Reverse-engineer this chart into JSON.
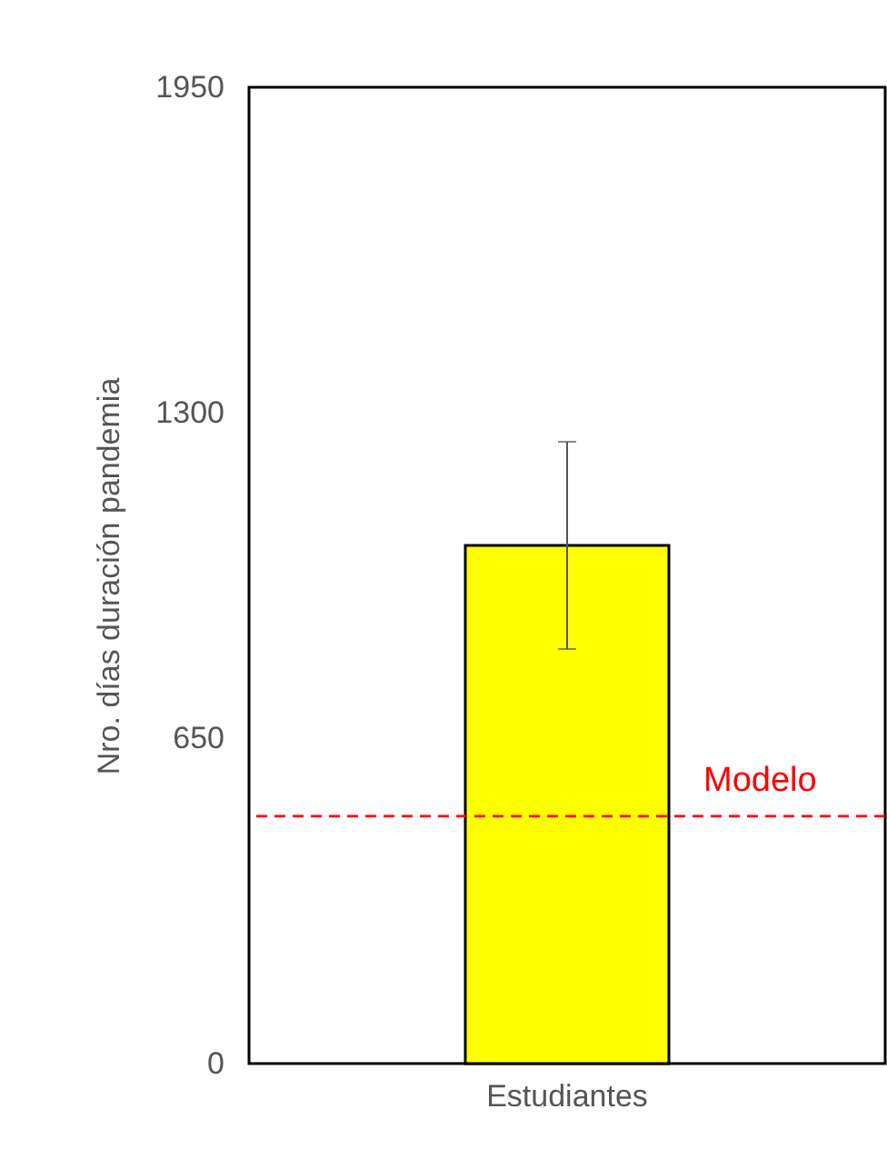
{
  "chart_data": {
    "type": "bar",
    "ylabel": "Nro. días duración pandemia",
    "categories": [
      "Estudiantes"
    ],
    "values": [
      1035
    ],
    "colors": [
      "#ffff00"
    ],
    "errors": [
      207
    ],
    "ylim": [
      0,
      1950
    ],
    "yticks": [
      0,
      650,
      1300,
      1950
    ],
    "grid": false,
    "ref_lines": [
      {
        "axis": "y",
        "value": 494,
        "label": "Modelo",
        "color": "#ff0000",
        "line_style": "dashed"
      }
    ]
  }
}
